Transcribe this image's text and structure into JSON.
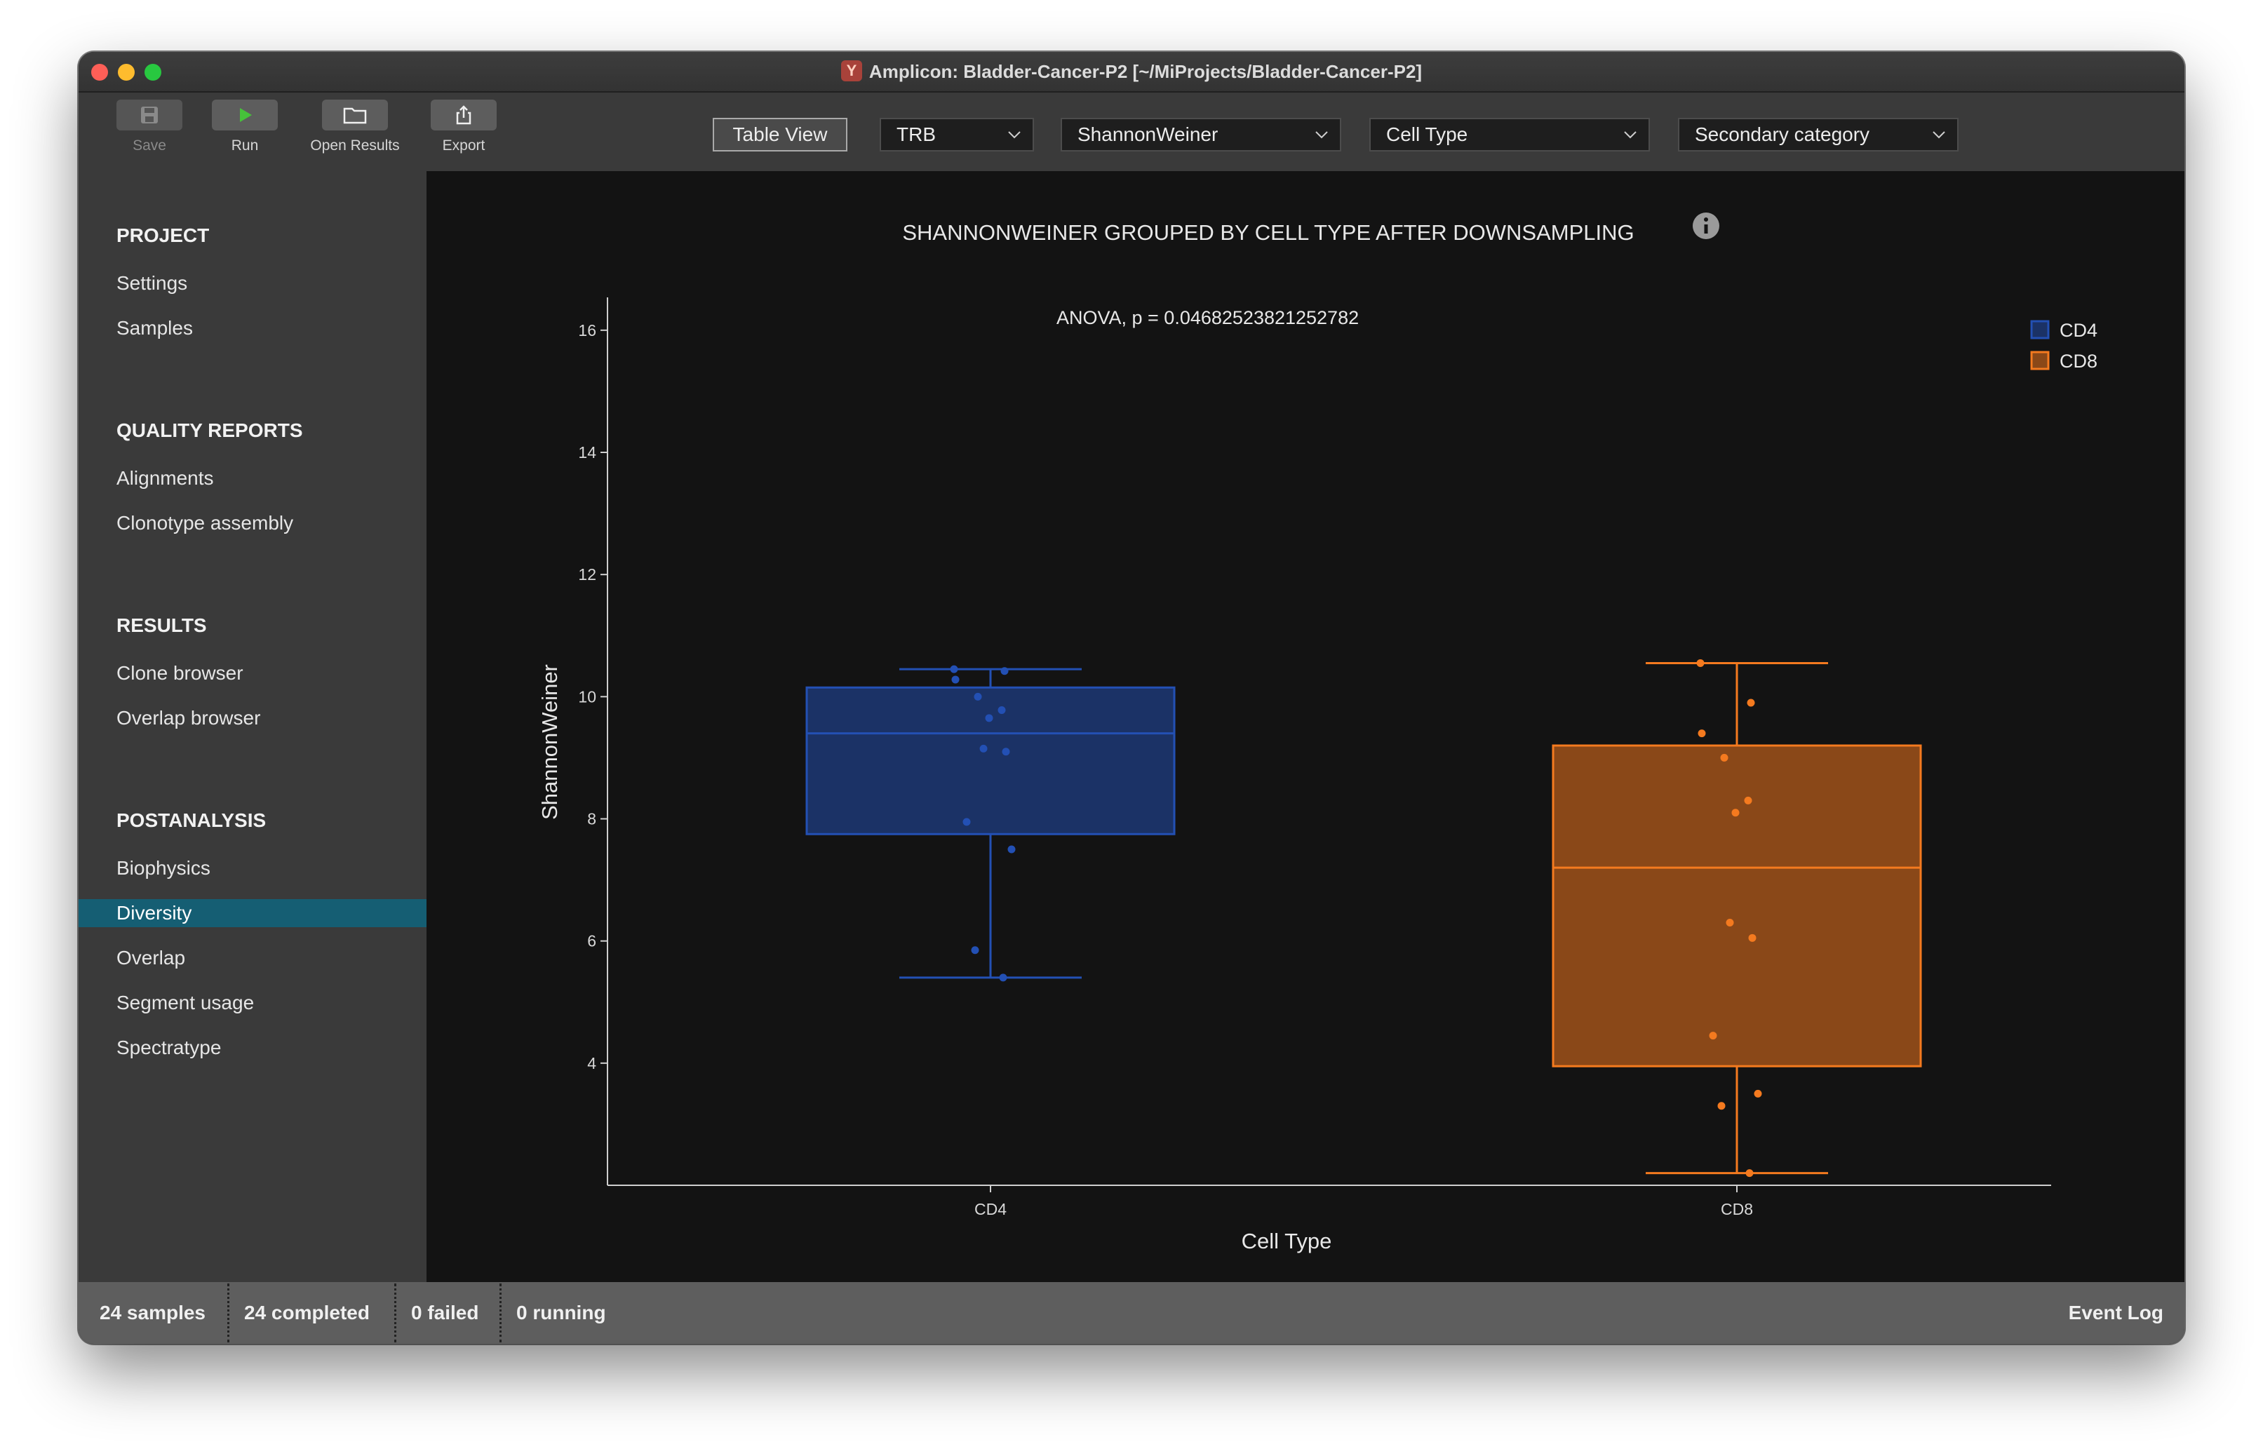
{
  "window": {
    "title": "Amplicon: Bladder-Cancer-P2 [~/MiProjects/Bladder-Cancer-P2]"
  },
  "toolbar": {
    "save_label": "Save",
    "run_label": "Run",
    "open_results_label": "Open Results",
    "export_label": "Export",
    "table_view_label": "Table View",
    "chain_select": "TRB",
    "metric_select": "ShannonWeiner",
    "group_select": "Cell Type",
    "secondary_select": "Secondary category"
  },
  "sidebar": {
    "sections": [
      {
        "title": "PROJECT",
        "items": [
          "Settings",
          "Samples"
        ]
      },
      {
        "title": "QUALITY REPORTS",
        "items": [
          "Alignments",
          "Clonotype assembly"
        ]
      },
      {
        "title": "RESULTS",
        "items": [
          "Clone browser",
          "Overlap browser"
        ]
      },
      {
        "title": "POSTANALYSIS",
        "items": [
          "Biophysics",
          "Diversity",
          "Overlap",
          "Segment usage",
          "Spectratype"
        ]
      }
    ],
    "active_item": "Diversity"
  },
  "status": {
    "samples": "24 samples",
    "completed": "24 completed",
    "failed": "0 failed",
    "running": "0 running",
    "event_log": "Event Log"
  },
  "colors": {
    "cd4": "#2350b4",
    "cd4_fill": "#1b3266",
    "cd8": "#f47a1f",
    "cd8_fill": "#8a4818",
    "active_nav": "#155e73"
  },
  "chart_data": {
    "type": "box",
    "title": "SHANNONWEINER GROUPED BY CELL TYPE AFTER DOWNSAMPLING",
    "annotation": "ANOVA, p = 0.04682523821252782",
    "xlabel": "Cell Type",
    "ylabel": "ShannonWeiner",
    "yticks": [
      4,
      6,
      8,
      10,
      12,
      14,
      16
    ],
    "ylim": [
      2.0,
      16.4
    ],
    "legend_position": "top-right",
    "categories": [
      "CD4",
      "CD8"
    ],
    "series": [
      {
        "name": "CD4",
        "min": 5.4,
        "q1": 7.75,
        "median": 9.4,
        "q3": 10.15,
        "max": 10.45,
        "points": [
          10.45,
          10.42,
          10.28,
          10.0,
          9.78,
          9.65,
          9.15,
          9.1,
          7.95,
          7.5,
          5.85,
          5.4
        ]
      },
      {
        "name": "CD8",
        "min": 2.2,
        "q1": 3.95,
        "median": 7.2,
        "q3": 9.2,
        "max": 10.55,
        "points": [
          10.55,
          9.9,
          9.4,
          9.0,
          8.3,
          8.1,
          6.3,
          6.05,
          4.45,
          3.5,
          3.3,
          2.2
        ]
      }
    ]
  }
}
